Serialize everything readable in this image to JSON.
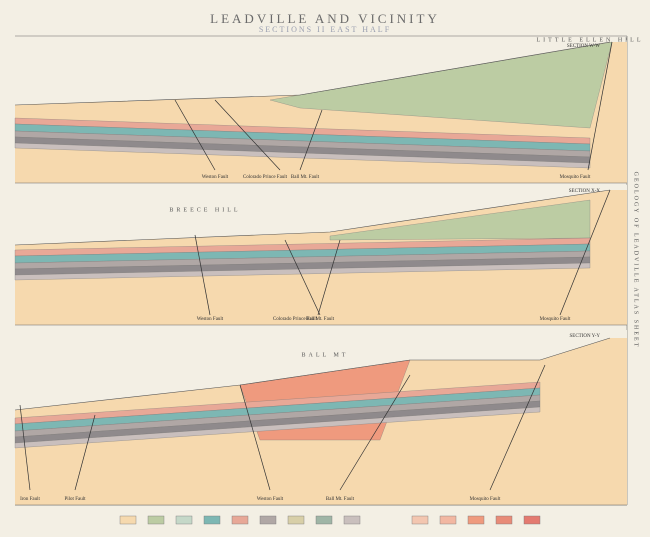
{
  "header": {
    "title": "LEADVILLE AND VICINITY",
    "subtitle": "SECTIONS II EAST HALF",
    "side_note": "GEOLOGY OF LEADVILLE ATLAS SHEET"
  },
  "sections": [
    {
      "label": "SECTION W-W",
      "hill": "LITTLE ELLEN HILL",
      "faults": [
        "Weston Fault",
        "Colorado Prince Fault",
        "Ball Mt. Fault",
        "Mosquito Fault"
      ]
    },
    {
      "label": "SECTION X-X",
      "hill": "BREECE HILL",
      "faults": [
        "Weston Fault",
        "Colorado Prince Fault",
        "Ball Mt. Fault",
        "Mosquito Fault"
      ]
    },
    {
      "label": "SECTION Y-Y",
      "hill": "BALL MT",
      "faults": [
        "Iron Fault",
        "Pilot Fault",
        "Weston Fault",
        "Ball Mt. Fault",
        "Mosquito Fault"
      ]
    }
  ]
}
